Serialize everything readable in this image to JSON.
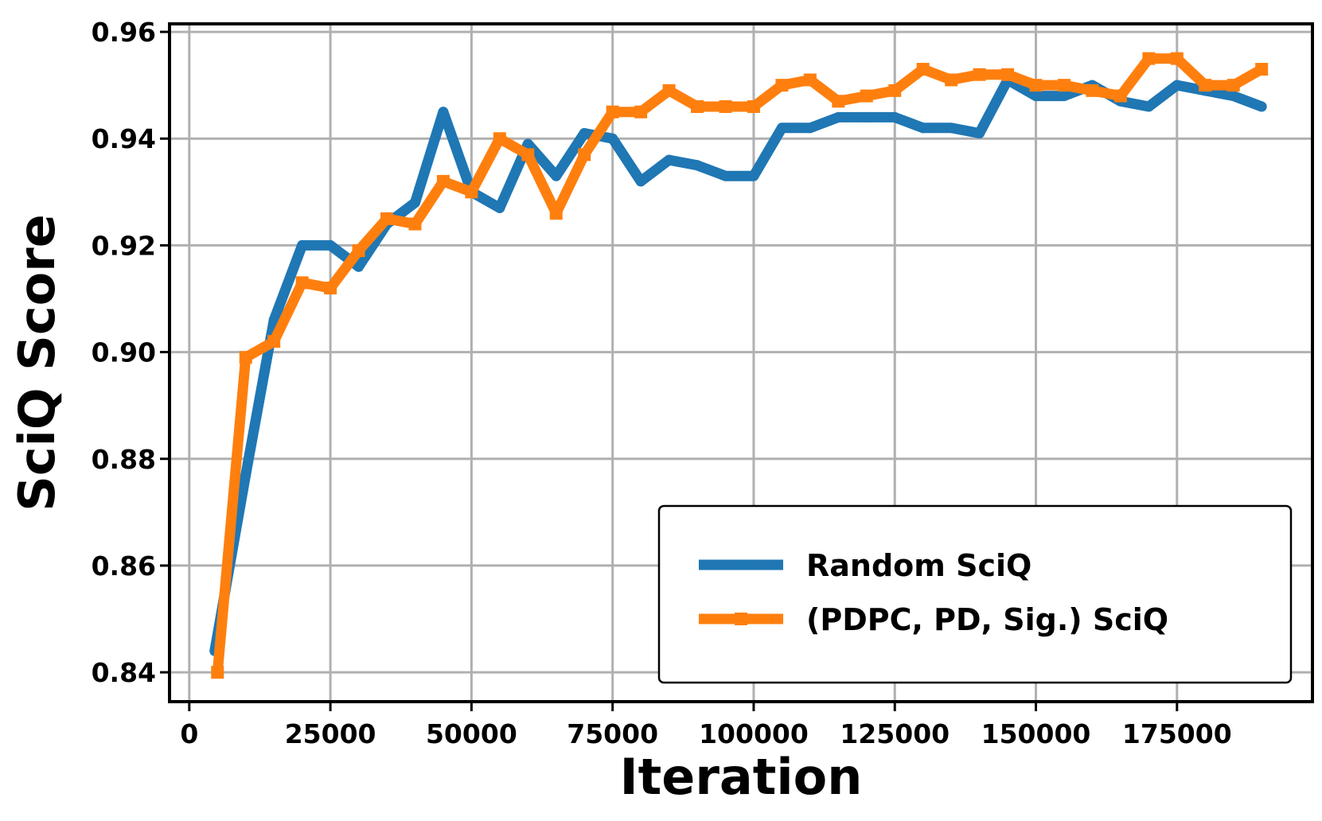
{
  "chart_data": {
    "type": "line",
    "xlabel": "Iteration",
    "ylabel": "SciQ Score",
    "xlim": [
      -3500,
      199000
    ],
    "ylim": [
      0.8345,
      0.9615
    ],
    "xticks": [
      0,
      25000,
      50000,
      75000,
      100000,
      125000,
      150000,
      175000
    ],
    "xtick_labels": [
      "0",
      "25000",
      "50000",
      "75000",
      "100000",
      "125000",
      "150000",
      "175000"
    ],
    "yticks": [
      0.84,
      0.86,
      0.88,
      0.9,
      0.92,
      0.94,
      0.96
    ],
    "ytick_labels": [
      "0.84",
      "0.86",
      "0.88",
      "0.90",
      "0.92",
      "0.94",
      "0.96"
    ],
    "grid": true,
    "legend_position": "lower-right",
    "series": [
      {
        "name": "Random SciQ",
        "color": "#1f77b4",
        "marker": "circle",
        "x": [
          4500,
          10000,
          15000,
          20000,
          25000,
          30000,
          35000,
          40000,
          45000,
          50000,
          55000,
          60000,
          65000,
          70000,
          75000,
          80000,
          85000,
          90000,
          95000,
          100000,
          105000,
          110000,
          115000,
          120000,
          125000,
          130000,
          135000,
          140000,
          145000,
          150000,
          155000,
          160000,
          165000,
          170000,
          175000,
          180000,
          185000,
          190000
        ],
        "y": [
          0.844,
          0.877,
          0.906,
          0.92,
          0.92,
          0.916,
          0.924,
          0.928,
          0.945,
          0.93,
          0.927,
          0.939,
          0.933,
          0.941,
          0.94,
          0.932,
          0.936,
          0.935,
          0.933,
          0.933,
          0.942,
          0.942,
          0.944,
          0.944,
          0.944,
          0.942,
          0.942,
          0.941,
          0.951,
          0.948,
          0.948,
          0.95,
          0.947,
          0.946,
          0.95,
          0.949,
          0.948,
          0.946
        ]
      },
      {
        "name": "(PDPC, PD, Sig.) SciQ",
        "color": "#ff7f0e",
        "marker": "square",
        "x": [
          5000,
          10000,
          15000,
          20000,
          25000,
          30000,
          35000,
          40000,
          45000,
          50000,
          55000,
          60000,
          65000,
          70000,
          75000,
          80000,
          85000,
          90000,
          95000,
          100000,
          105000,
          110000,
          115000,
          120000,
          125000,
          130000,
          135000,
          140000,
          145000,
          150000,
          155000,
          160000,
          165000,
          170000,
          175000,
          180000,
          185000,
          190000
        ],
        "y": [
          0.84,
          0.899,
          0.902,
          0.913,
          0.912,
          0.919,
          0.925,
          0.924,
          0.932,
          0.93,
          0.94,
          0.937,
          0.926,
          0.937,
          0.945,
          0.945,
          0.949,
          0.946,
          0.946,
          0.946,
          0.95,
          0.951,
          0.947,
          0.948,
          0.949,
          0.953,
          0.951,
          0.952,
          0.952,
          0.95,
          0.95,
          0.949,
          0.948,
          0.955,
          0.955,
          0.95,
          0.95,
          0.953
        ]
      }
    ]
  }
}
